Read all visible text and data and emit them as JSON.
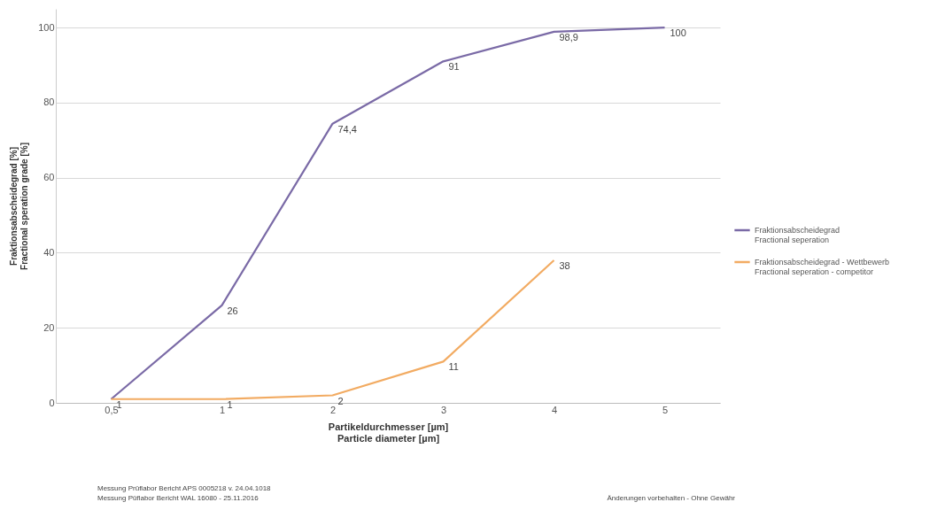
{
  "chart_data": {
    "type": "line",
    "xlabel": "Partikeldurchmesser [µm]\nParticle diameter [µm]",
    "ylabel": "Fraktionsabscheidegrad [%]\nFractional speration grade [%]",
    "categories": [
      "0,5",
      "1",
      "2",
      "3",
      "4",
      "5"
    ],
    "series": [
      {
        "name": "Fraktionsabscheidegrad\nFractional seperation",
        "color": "#7a6aa6",
        "values": [
          1,
          26,
          74.4,
          91,
          98.9,
          100
        ],
        "value_labels": [
          null,
          "26",
          "74,4",
          "91",
          "98,9",
          "100"
        ]
      },
      {
        "name": "Fraktionsabscheidegrad - Wettbewerb\nFractional seperation - competitor",
        "color": "#f2ab62",
        "values": [
          1,
          1,
          2,
          11,
          38,
          null
        ],
        "value_labels": [
          "1",
          "1",
          "2",
          "11",
          "38",
          null
        ]
      }
    ],
    "ylim": [
      0,
      105
    ],
    "yticks": [
      0,
      20,
      40,
      60,
      80,
      100
    ],
    "grid": "y",
    "legend": "right",
    "annotations": [
      "Messung Prüflabor Bericht APS 0005218 v. 24.04.1018",
      "Messung Püflabor Bericht WAL 16080 - 25.11.2016",
      "Änderungen vorbehalten - Ohne Gewähr"
    ]
  }
}
